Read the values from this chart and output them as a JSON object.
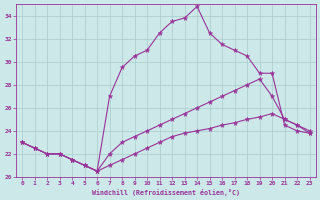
{
  "xlabel": "Windchill (Refroidissement éolien,°C)",
  "bg_color": "#cce8e8",
  "grid_color": "#aacccc",
  "line_color": "#993399",
  "xlim": [
    -0.5,
    23.5
  ],
  "ylim": [
    20,
    35
  ],
  "yticks": [
    20,
    22,
    24,
    26,
    28,
    30,
    32,
    34
  ],
  "xticks": [
    0,
    1,
    2,
    3,
    4,
    5,
    6,
    7,
    8,
    9,
    10,
    11,
    12,
    13,
    14,
    15,
    16,
    17,
    18,
    19,
    20,
    21,
    22,
    23
  ],
  "series": [
    {
      "x": [
        0,
        1,
        2,
        3,
        4,
        5,
        6,
        7,
        8,
        9,
        10,
        11,
        12,
        13,
        14,
        15,
        16,
        17,
        18,
        19,
        20,
        21,
        22,
        23
      ],
      "y": [
        23.0,
        22.5,
        22.0,
        22.0,
        21.5,
        21.0,
        20.5,
        27.0,
        29.5,
        30.5,
        31.0,
        32.5,
        33.5,
        33.8,
        34.8,
        32.5,
        31.5,
        31.0,
        30.5,
        29.0,
        29.0,
        24.5,
        24.0,
        23.8
      ]
    },
    {
      "x": [
        0,
        1,
        2,
        3,
        4,
        5,
        6,
        7,
        8,
        9,
        10,
        11,
        12,
        13,
        14,
        15,
        16,
        17,
        18,
        19,
        20,
        21,
        22,
        23
      ],
      "y": [
        23.0,
        22.5,
        22.0,
        22.0,
        21.5,
        21.0,
        20.5,
        22.0,
        23.0,
        23.5,
        24.0,
        24.5,
        25.0,
        25.5,
        26.0,
        26.5,
        27.0,
        27.5,
        28.0,
        28.5,
        27.0,
        25.0,
        24.5,
        24.0
      ]
    },
    {
      "x": [
        0,
        1,
        2,
        3,
        4,
        5,
        6,
        7,
        8,
        9,
        10,
        11,
        12,
        13,
        14,
        15,
        16,
        17,
        18,
        19,
        20,
        21,
        22,
        23
      ],
      "y": [
        23.0,
        22.5,
        22.0,
        22.0,
        21.5,
        21.0,
        20.5,
        21.0,
        21.5,
        22.0,
        22.5,
        23.0,
        23.5,
        23.8,
        24.0,
        24.2,
        24.5,
        24.7,
        25.0,
        25.2,
        25.5,
        25.0,
        24.5,
        23.8
      ]
    }
  ]
}
